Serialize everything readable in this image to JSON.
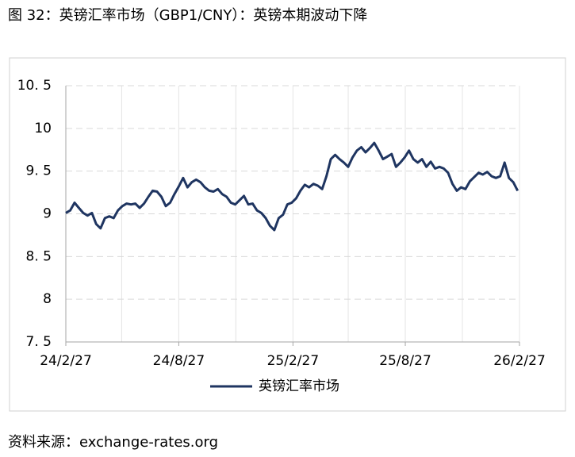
{
  "chart_data": {
    "type": "line",
    "title": "图 32：英镑汇率市场（GBP1/CNY）：英镑本期波动下降",
    "source": "资料来源：exchange-rates.org",
    "x": [
      0,
      7,
      14,
      21,
      28,
      35,
      42,
      49,
      56,
      63,
      70,
      77,
      84,
      91,
      98,
      105,
      112,
      119,
      126,
      133,
      140,
      147,
      154,
      161,
      168,
      175,
      182,
      189,
      196,
      203,
      210,
      217,
      224,
      231,
      238,
      245,
      252,
      259,
      266,
      273,
      280,
      287,
      294,
      301,
      308,
      315,
      322,
      329,
      336,
      343,
      350,
      357,
      364,
      371,
      378,
      385,
      392,
      399,
      406,
      413,
      420,
      427,
      434,
      441,
      448,
      455,
      462,
      469,
      476,
      483,
      490,
      497,
      504,
      511,
      518,
      525,
      532,
      539,
      546,
      553,
      560,
      567,
      574,
      581,
      588,
      595,
      602,
      609,
      616,
      623,
      630,
      637,
      644,
      651,
      658,
      665,
      672,
      679,
      686,
      693,
      700,
      707,
      714,
      721,
      728
    ],
    "series": [
      {
        "name": "英镑汇率市场",
        "color": "#1f3561",
        "values": [
          9.01,
          9.04,
          9.13,
          9.07,
          9.01,
          8.98,
          9.01,
          8.88,
          8.83,
          8.95,
          8.97,
          8.95,
          9.04,
          9.09,
          9.12,
          9.11,
          9.12,
          9.07,
          9.12,
          9.2,
          9.27,
          9.26,
          9.2,
          9.09,
          9.13,
          9.23,
          9.32,
          9.42,
          9.31,
          9.37,
          9.4,
          9.37,
          9.31,
          9.27,
          9.26,
          9.29,
          9.23,
          9.2,
          9.13,
          9.11,
          9.16,
          9.21,
          9.11,
          9.12,
          9.04,
          9.01,
          8.95,
          8.86,
          8.81,
          8.95,
          8.99,
          9.11,
          9.13,
          9.18,
          9.27,
          9.34,
          9.31,
          9.35,
          9.33,
          9.29,
          9.44,
          9.64,
          9.69,
          9.64,
          9.6,
          9.55,
          9.66,
          9.74,
          9.78,
          9.72,
          9.77,
          9.83,
          9.74,
          9.64,
          9.67,
          9.7,
          9.55,
          9.6,
          9.66,
          9.74,
          9.64,
          9.6,
          9.64,
          9.55,
          9.61,
          9.53,
          9.55,
          9.53,
          9.48,
          9.35,
          9.27,
          9.31,
          9.29,
          9.38,
          9.43,
          9.48,
          9.46,
          9.49,
          9.44,
          9.42,
          9.44,
          9.6,
          9.42,
          9.37,
          9.27
        ]
      }
    ],
    "xlim": [
      0,
      731
    ],
    "xticks": [
      {
        "value": 0,
        "label": "24/2/27"
      },
      {
        "value": 182,
        "label": "24/8/27"
      },
      {
        "value": 366,
        "label": "25/2/27"
      },
      {
        "value": 547,
        "label": "25/8/27"
      },
      {
        "value": 731,
        "label": "26/2/27"
      }
    ],
    "xgrid": [
      0,
      90,
      182,
      274,
      366,
      455,
      547,
      639,
      731
    ],
    "ylim": [
      7.5,
      10.5
    ],
    "yticks": [
      {
        "value": 10.5,
        "label": "10. 5"
      },
      10,
      {
        "value": 9.5,
        "label": "9. 5"
      },
      9,
      {
        "value": 8.5,
        "label": "8. 5"
      },
      8,
      {
        "value": 7.5,
        "label": "7. 5"
      }
    ],
    "grid": true,
    "legend": "bottom"
  }
}
